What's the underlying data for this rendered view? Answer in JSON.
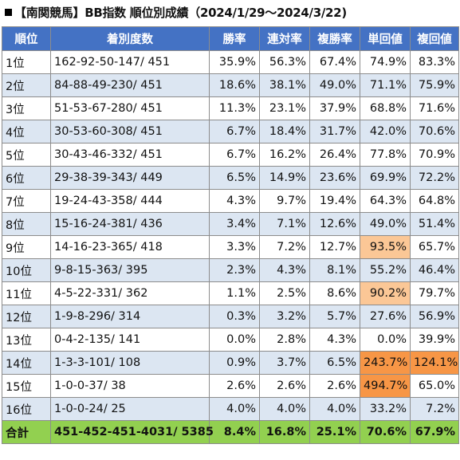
{
  "title": "【南関競馬】BB指数 順位別成績（2024/1/29～2024/3/22)",
  "headers": [
    "順位",
    "着別度数",
    "勝率",
    "連対率",
    "複勝率",
    "単回値",
    "複回値"
  ],
  "rows": [
    [
      "1位",
      "162-92-50-147/ 451",
      "35.9%",
      "56.3%",
      "67.4%",
      "74.9%",
      "83.3%"
    ],
    [
      "2位",
      "84-88-49-230/ 451",
      "18.6%",
      "38.1%",
      "49.0%",
      "71.1%",
      "75.9%"
    ],
    [
      "3位",
      "51-53-67-280/ 451",
      "11.3%",
      "23.1%",
      "37.9%",
      "68.8%",
      "71.6%"
    ],
    [
      "4位",
      "30-53-60-308/ 451",
      "6.7%",
      "18.4%",
      "31.7%",
      "42.0%",
      "70.6%"
    ],
    [
      "5位",
      "30-43-46-332/ 451",
      "6.7%",
      "16.2%",
      "26.4%",
      "77.8%",
      "70.9%"
    ],
    [
      "6位",
      "29-38-39-343/ 449",
      "6.5%",
      "14.9%",
      "23.6%",
      "69.9%",
      "72.2%"
    ],
    [
      "7位",
      "19-24-43-358/ 444",
      "4.3%",
      "9.7%",
      "19.4%",
      "64.3%",
      "64.8%"
    ],
    [
      "8位",
      "15-16-24-381/ 436",
      "3.4%",
      "7.1%",
      "12.6%",
      "49.0%",
      "51.4%"
    ],
    [
      "9位",
      "14-16-23-365/ 418",
      "3.3%",
      "7.2%",
      "12.7%",
      "93.5%",
      "65.7%"
    ],
    [
      "10位",
      "9-8-15-363/ 395",
      "2.3%",
      "4.3%",
      "8.1%",
      "55.2%",
      "46.4%"
    ],
    [
      "11位",
      "4-5-22-331/ 362",
      "1.1%",
      "2.5%",
      "8.6%",
      "90.2%",
      "79.7%"
    ],
    [
      "12位",
      "1-9-8-296/ 314",
      "0.3%",
      "3.2%",
      "5.7%",
      "27.6%",
      "56.9%"
    ],
    [
      "13位",
      "0-4-2-135/ 141",
      "0.0%",
      "2.8%",
      "4.3%",
      "0.0%",
      "39.9%"
    ],
    [
      "14位",
      "1-3-3-101/ 108",
      "0.9%",
      "3.7%",
      "6.5%",
      "243.7%",
      "124.1%"
    ],
    [
      "15位",
      "1-0-0-37/ 38",
      "2.6%",
      "2.6%",
      "2.6%",
      "494.7%",
      "65.0%"
    ],
    [
      "16位",
      "1-0-0-24/ 25",
      "4.0%",
      "4.0%",
      "4.0%",
      "33.2%",
      "7.2%"
    ]
  ],
  "total": [
    "合計",
    "451-452-451-4031/ 5385",
    "8.4%",
    "16.8%",
    "25.1%",
    "70.6%",
    "67.9%"
  ],
  "highlights": {
    "8-5": "light",
    "10-5": "light",
    "13-5": "strong",
    "13-6": "strong",
    "14-5": "strong"
  },
  "colors": {
    "header": "#4472c4",
    "stripe": "#dce6f2",
    "total": "#92d050",
    "highlight_light": "#fbc796",
    "highlight_strong": "#f79646"
  }
}
